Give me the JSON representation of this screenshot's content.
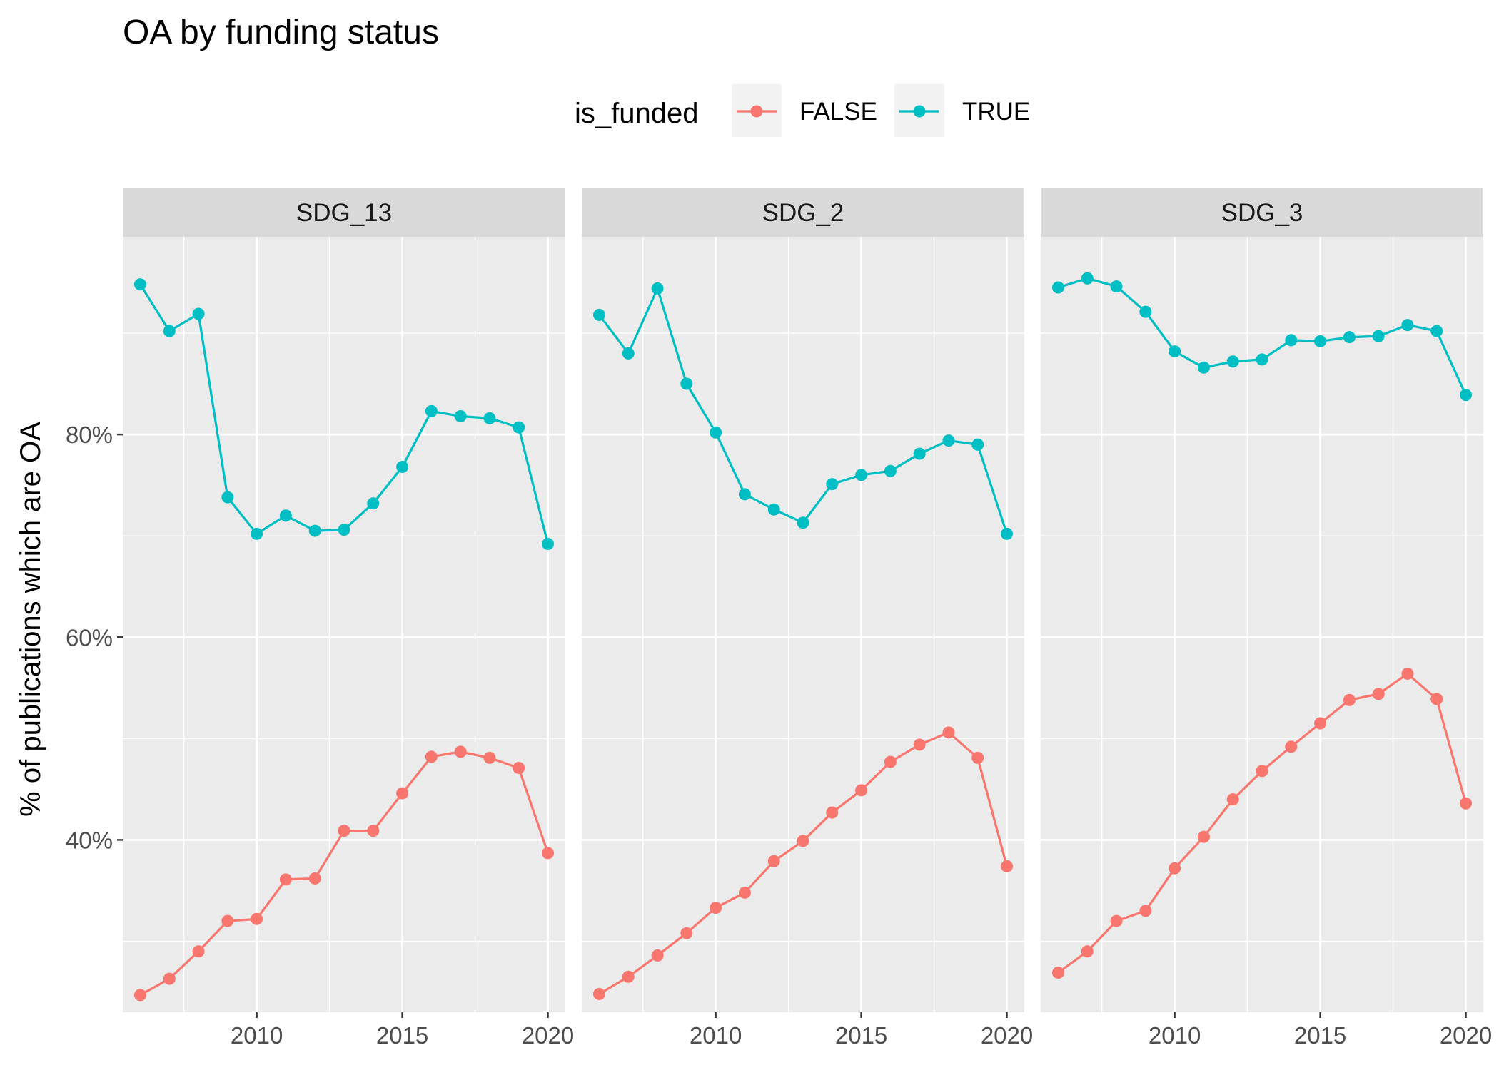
{
  "chart_data": {
    "type": "line",
    "title": "OA by funding status",
    "xlabel": "",
    "ylabel": "% of publications which are OA",
    "xlim": [
      2005.4,
      2020.6
    ],
    "ylim": [
      23,
      99.5
    ],
    "x_ticks": [
      2010,
      2015,
      2020
    ],
    "x_tick_labels": [
      "2010",
      "2015",
      "2020"
    ],
    "y_ticks": [
      40,
      60,
      80
    ],
    "y_tick_labels": [
      "40%",
      "60%",
      "80%"
    ],
    "legend": {
      "title": "is_funded",
      "position": "top",
      "entries": [
        {
          "label": "FALSE",
          "color": "#F8766D"
        },
        {
          "label": "TRUE",
          "color": "#00BFC4"
        }
      ]
    },
    "x": [
      2006,
      2007,
      2008,
      2009,
      2010,
      2011,
      2012,
      2013,
      2014,
      2015,
      2016,
      2017,
      2018,
      2019,
      2020
    ],
    "panels": [
      {
        "label": "SDG_13",
        "series": [
          {
            "name": "FALSE",
            "color": "#F8766D",
            "values": [
              24.7,
              26.3,
              29.0,
              32.0,
              32.2,
              36.1,
              36.2,
              40.9,
              40.9,
              44.6,
              48.2,
              48.7,
              48.1,
              47.1,
              38.7
            ]
          },
          {
            "name": "TRUE",
            "color": "#00BFC4",
            "values": [
              94.8,
              90.2,
              91.9,
              73.8,
              70.2,
              72.0,
              70.5,
              70.6,
              73.2,
              76.8,
              82.3,
              81.8,
              81.6,
              80.7,
              69.2
            ]
          }
        ]
      },
      {
        "label": "SDG_2",
        "series": [
          {
            "name": "FALSE",
            "color": "#F8766D",
            "values": [
              24.8,
              26.5,
              28.6,
              30.8,
              33.3,
              34.8,
              37.9,
              39.9,
              42.7,
              44.9,
              47.7,
              49.4,
              50.6,
              48.1,
              37.4
            ]
          },
          {
            "name": "TRUE",
            "color": "#00BFC4",
            "values": [
              91.8,
              88.0,
              94.4,
              85.0,
              80.2,
              74.1,
              72.6,
              71.3,
              75.1,
              76.0,
              76.4,
              78.1,
              79.4,
              79.0,
              70.2
            ]
          }
        ]
      },
      {
        "label": "SDG_3",
        "series": [
          {
            "name": "FALSE",
            "color": "#F8766D",
            "values": [
              26.9,
              29.0,
              32.0,
              33.0,
              37.2,
              40.3,
              44.0,
              46.8,
              49.2,
              51.5,
              53.8,
              54.4,
              56.4,
              53.9,
              43.6
            ]
          },
          {
            "name": "TRUE",
            "color": "#00BFC4",
            "values": [
              94.5,
              95.4,
              94.6,
              92.1,
              88.2,
              86.6,
              87.2,
              87.4,
              89.3,
              89.2,
              89.6,
              89.7,
              90.8,
              90.2,
              83.9
            ]
          }
        ]
      }
    ]
  }
}
